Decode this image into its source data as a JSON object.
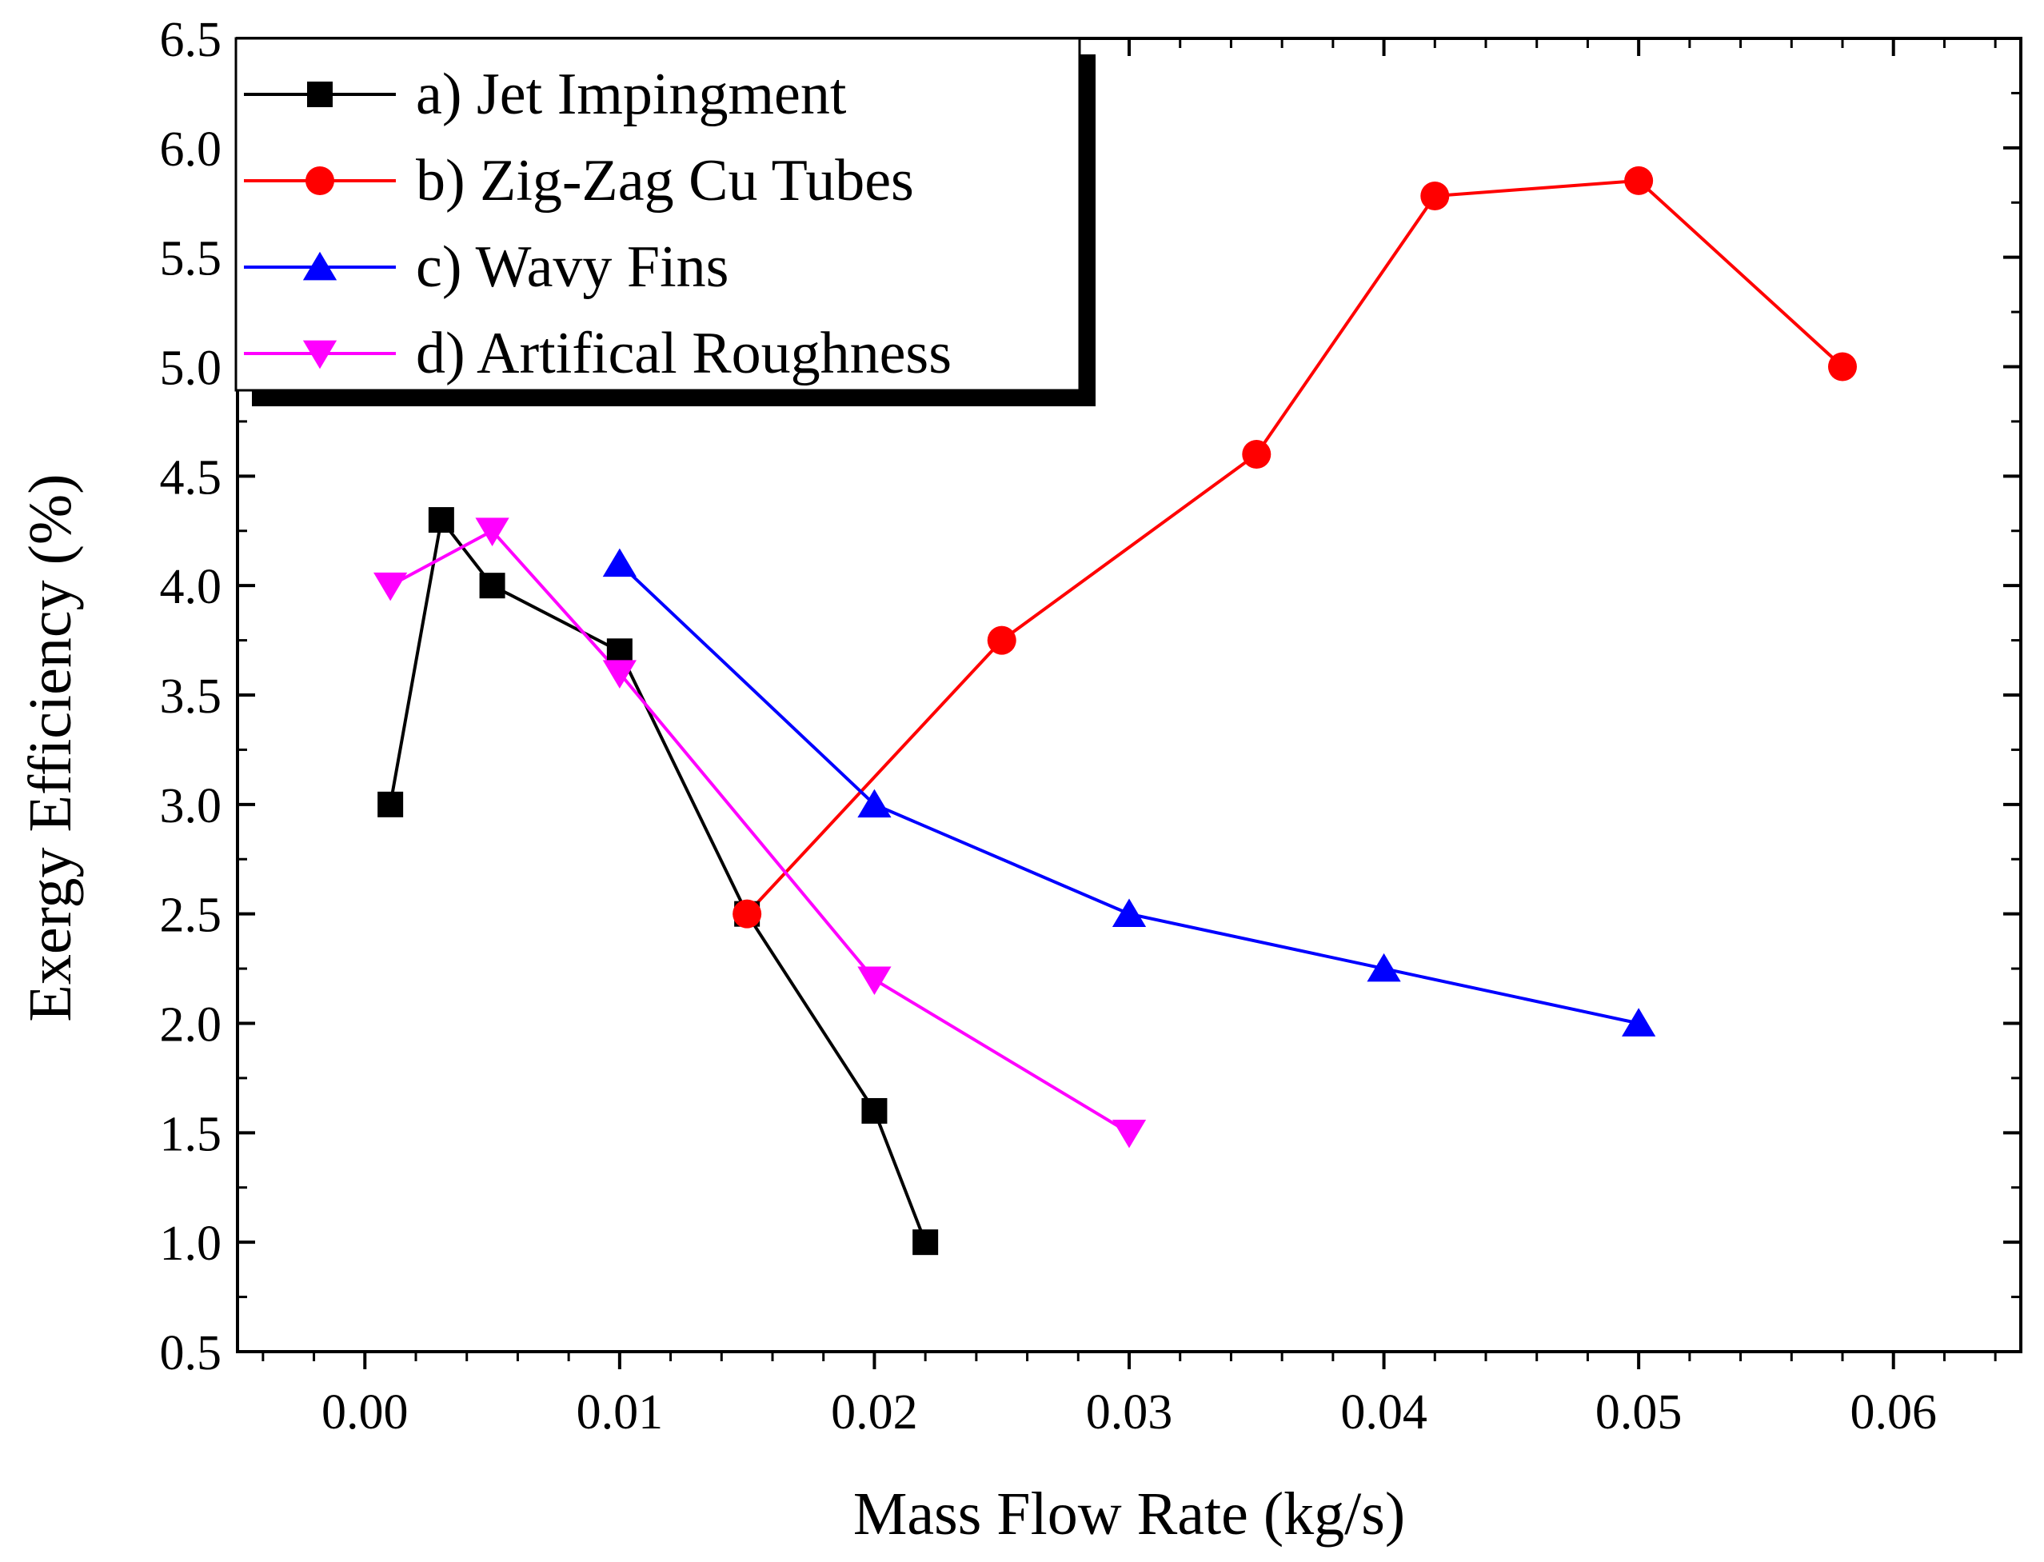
{
  "chart_data": {
    "type": "line",
    "title": "",
    "xlabel": "Mass Flow Rate (kg/s)",
    "ylabel": "Exergy Efficiency (%)",
    "xlim": [
      -0.005,
      0.065
    ],
    "ylim": [
      0.5,
      6.5
    ],
    "x_ticks": [
      0.0,
      0.01,
      0.02,
      0.03,
      0.04,
      0.05,
      0.06
    ],
    "x_tick_labels": [
      "0.00",
      "0.01",
      "0.02",
      "0.03",
      "0.04",
      "0.05",
      "0.06"
    ],
    "y_ticks": [
      0.5,
      1.0,
      1.5,
      2.0,
      2.5,
      3.0,
      3.5,
      4.0,
      4.5,
      5.0,
      5.5,
      6.0,
      6.5
    ],
    "y_tick_labels": [
      "0.5",
      "1.0",
      "1.5",
      "2.0",
      "2.5",
      "3.0",
      "3.5",
      "4.0",
      "4.5",
      "5.0",
      "5.5",
      "6.0",
      "6.5"
    ],
    "grid": false,
    "legend_position": "top-left",
    "series": [
      {
        "name": "a) Jet Impingment",
        "color": "#000000",
        "marker": "square",
        "x": [
          0.001,
          0.003,
          0.005,
          0.01,
          0.015,
          0.02,
          0.022
        ],
        "y": [
          3.0,
          4.3,
          4.0,
          3.7,
          2.5,
          1.6,
          1.0
        ]
      },
      {
        "name": "b) Zig-Zag Cu Tubes",
        "color": "#ff0000",
        "marker": "circle",
        "x": [
          0.015,
          0.025,
          0.035,
          0.042,
          0.05,
          0.058
        ],
        "y": [
          2.5,
          3.75,
          4.6,
          5.78,
          5.85,
          5.0
        ]
      },
      {
        "name": "c) Wavy Fins",
        "color": "#0000ff",
        "marker": "triangle-up",
        "x": [
          0.01,
          0.02,
          0.03,
          0.04,
          0.05
        ],
        "y": [
          4.1,
          3.0,
          2.5,
          2.25,
          2.0
        ]
      },
      {
        "name": "d) Artifical Roughness",
        "color": "#ff00ff",
        "marker": "triangle-down",
        "x": [
          0.001,
          0.005,
          0.01,
          0.02,
          0.03
        ],
        "y": [
          4.0,
          4.25,
          3.6,
          2.2,
          1.5
        ]
      }
    ]
  }
}
